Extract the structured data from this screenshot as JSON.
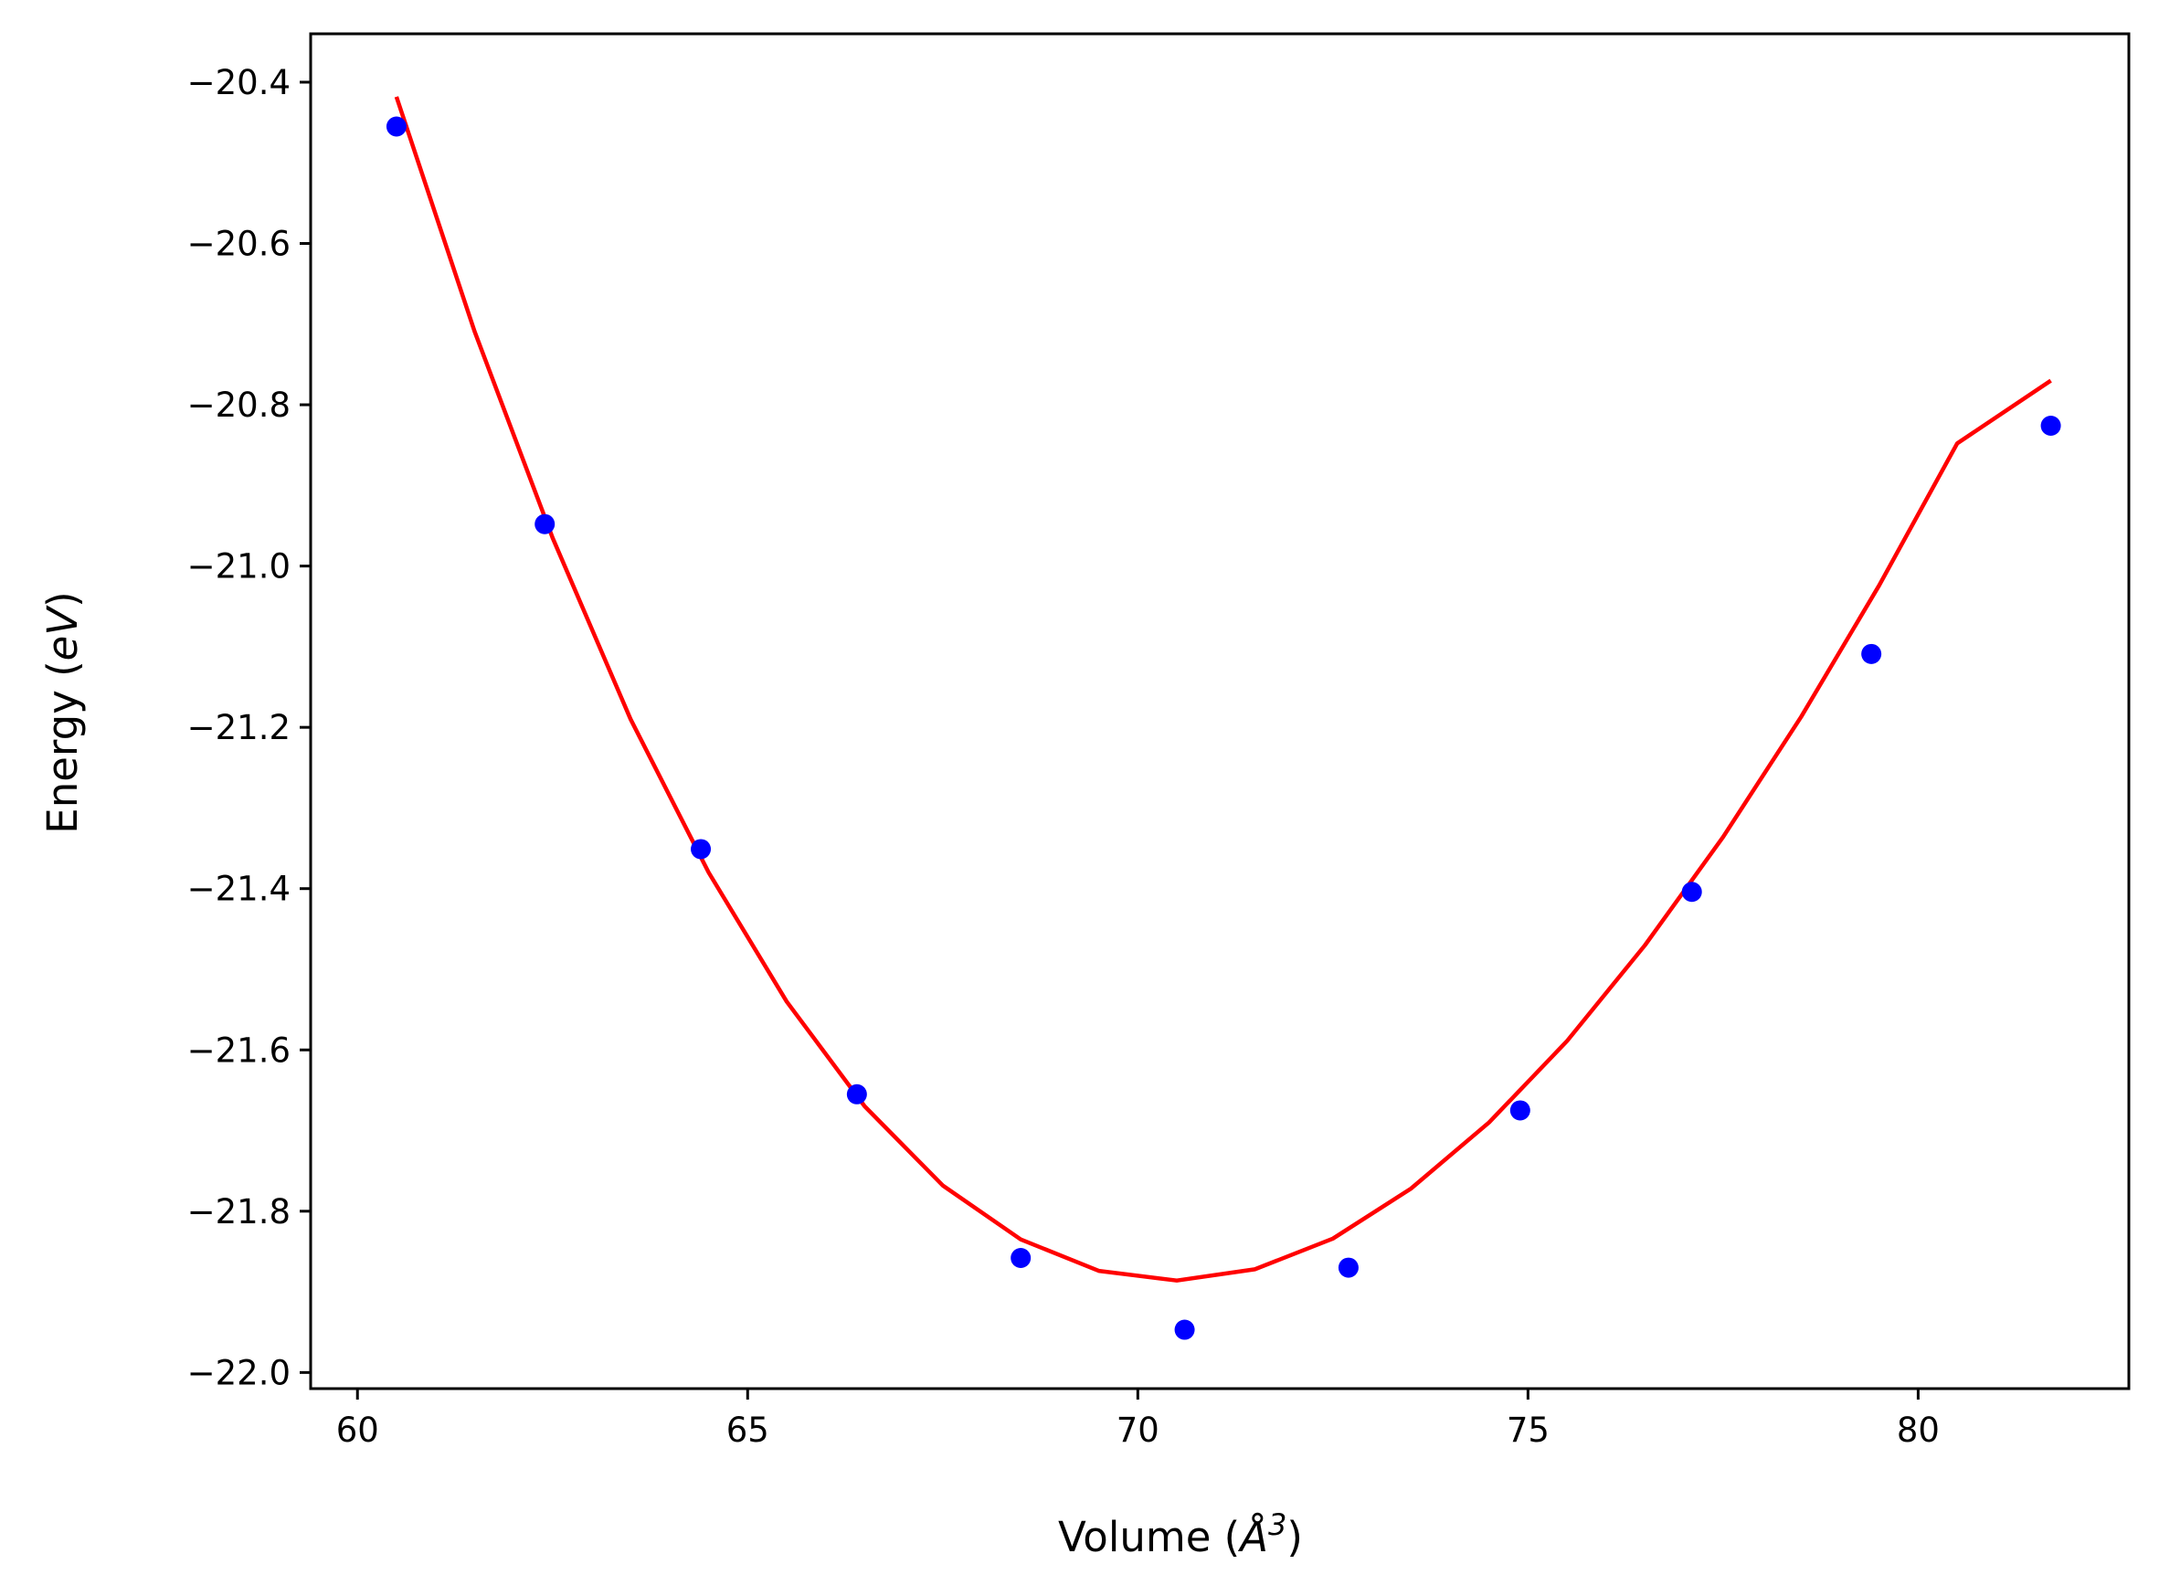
{
  "chart_data": {
    "type": "scatter",
    "title": "",
    "xlabel_main": "Volume (",
    "xlabel_unit": "Å",
    "xlabel_exp": "3",
    "xlabel_close": ")",
    "ylabel_main": "Energy (",
    "ylabel_unit": "eV",
    "ylabel_close": ")",
    "xlim": [
      59.4,
      82.7
    ],
    "ylim": [
      -22.02,
      -20.34
    ],
    "xticks": [
      60,
      65,
      70,
      75,
      80
    ],
    "xtick_labels": [
      "60",
      "65",
      "70",
      "75",
      "80"
    ],
    "yticks": [
      -22.0,
      -21.8,
      -21.6,
      -21.4,
      -21.2,
      -21.0,
      -20.8,
      -20.6,
      -20.4
    ],
    "ytick_labels": [
      "−22.0",
      "−21.8",
      "−21.6",
      "−21.4",
      "−21.2",
      "−21.0",
      "−20.8",
      "−20.6",
      "−20.4"
    ],
    "grid": false,
    "series": [
      {
        "kind": "points",
        "color": "#0000ff",
        "x": [
          60.5,
          62.4,
          64.4,
          66.4,
          68.5,
          70.6,
          72.7,
          74.9,
          77.1,
          79.4,
          81.7
        ],
        "y": [
          -20.455,
          -20.948,
          -21.351,
          -21.655,
          -21.858,
          -21.947,
          -21.87,
          -21.675,
          -21.404,
          -21.109,
          -20.826
        ]
      },
      {
        "kind": "fit",
        "color": "#ff0000",
        "x": [
          60.5,
          61.5,
          62.5,
          63.5,
          64.5,
          65.5,
          66.5,
          67.5,
          68.5,
          69.5,
          70.5,
          71.5,
          72.5,
          73.5,
          74.5,
          75.5,
          76.5,
          77.5,
          78.5,
          79.5,
          80.5,
          81.7
        ],
        "y": [
          -20.418,
          -20.709,
          -20.965,
          -21.19,
          -21.38,
          -21.54,
          -21.67,
          -21.768,
          -21.835,
          -21.874,
          -21.886,
          -21.872,
          -21.834,
          -21.772,
          -21.69,
          -21.589,
          -21.47,
          -21.336,
          -21.187,
          -21.024,
          -20.848,
          -20.77
        ]
      }
    ]
  }
}
